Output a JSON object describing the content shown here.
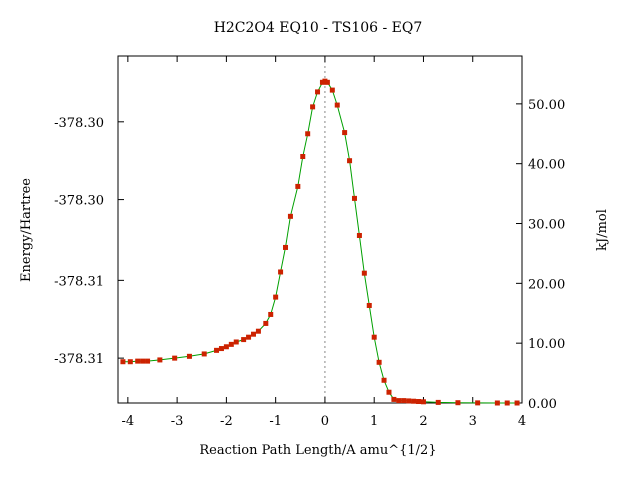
{
  "chart_data": {
    "type": "line",
    "title": "H2C2O4    EQ10 - TS106 - EQ7",
    "xlabel": "Reaction Path Length/A amu^{1/2}",
    "ylabel_left": "Energy/Hartree",
    "ylabel_right": "kJ/mol",
    "xlim": [
      -4.2,
      4.0
    ],
    "ylim_right": [
      0,
      58
    ],
    "x_ticks": [
      "-4",
      "-3",
      "-2",
      "-1",
      "0",
      "1",
      "2",
      "3",
      "4"
    ],
    "x_tick_values": [
      -4,
      -3,
      -2,
      -1,
      0,
      1,
      2,
      3,
      4
    ],
    "left_ticks": [
      "-378.30",
      "-378.30",
      "-378.31",
      "-378.31"
    ],
    "left_tick_values_kjmol": [
      47,
      34,
      20.5,
      7.5
    ],
    "right_ticks": [
      "0.00",
      "10.00",
      "20.00",
      "30.00",
      "40.00",
      "50.00"
    ],
    "right_tick_values": [
      0,
      10,
      20,
      30,
      40,
      50
    ],
    "ts_marker_x": 0,
    "grid": false,
    "line_color": "#00a000",
    "marker_color": "#cc2200",
    "series": [
      {
        "points": [
          [
            -4.1,
            6.9
          ],
          [
            -3.95,
            6.9
          ],
          [
            -3.8,
            7.0
          ],
          [
            -3.7,
            7.0
          ],
          [
            -3.6,
            7.0
          ],
          [
            -3.35,
            7.2
          ],
          [
            -3.05,
            7.5
          ],
          [
            -2.75,
            7.8
          ],
          [
            -2.45,
            8.2
          ],
          [
            -2.2,
            8.8
          ],
          [
            -2.1,
            9.1
          ],
          [
            -2.0,
            9.4
          ],
          [
            -1.9,
            9.8
          ],
          [
            -1.8,
            10.2
          ],
          [
            -1.65,
            10.6
          ],
          [
            -1.55,
            11.0
          ],
          [
            -1.45,
            11.5
          ],
          [
            -1.35,
            12.0
          ],
          [
            -1.2,
            13.3
          ],
          [
            -1.1,
            14.8
          ],
          [
            -1.0,
            17.7
          ],
          [
            -0.9,
            21.9
          ],
          [
            -0.8,
            26.0
          ],
          [
            -0.7,
            31.2
          ],
          [
            -0.55,
            36.2
          ],
          [
            -0.45,
            41.2
          ],
          [
            -0.35,
            45.0
          ],
          [
            -0.25,
            49.5
          ],
          [
            -0.15,
            52.0
          ],
          [
            -0.05,
            53.6
          ],
          [
            0.0,
            53.8
          ],
          [
            0.05,
            53.6
          ],
          [
            0.15,
            52.3
          ],
          [
            0.25,
            49.8
          ],
          [
            0.4,
            45.2
          ],
          [
            0.5,
            40.5
          ],
          [
            0.6,
            34.2
          ],
          [
            0.7,
            28.0
          ],
          [
            0.8,
            21.7
          ],
          [
            0.9,
            16.3
          ],
          [
            1.0,
            11.0
          ],
          [
            1.1,
            6.8
          ],
          [
            1.2,
            3.8
          ],
          [
            1.3,
            1.8
          ],
          [
            1.4,
            0.6
          ],
          [
            1.5,
            0.4
          ],
          [
            1.6,
            0.4
          ],
          [
            1.7,
            0.35
          ],
          [
            1.8,
            0.3
          ],
          [
            1.9,
            0.25
          ],
          [
            2.0,
            0.2
          ],
          [
            2.3,
            0.1
          ],
          [
            2.7,
            0.05
          ],
          [
            3.1,
            0.02
          ],
          [
            3.5,
            0.0
          ],
          [
            3.7,
            0.0
          ],
          [
            3.9,
            0.0
          ]
        ]
      }
    ]
  }
}
